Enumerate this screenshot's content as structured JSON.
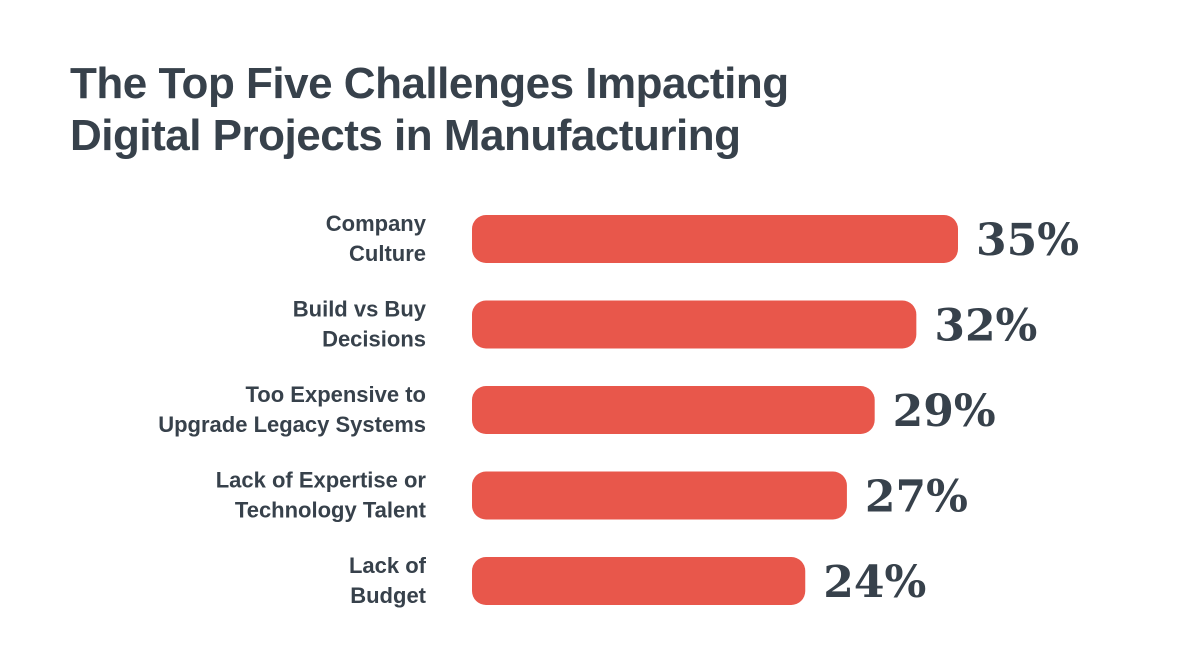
{
  "chart_data": {
    "type": "bar",
    "orientation": "horizontal",
    "title_lines": [
      "The Top Five Challenges Impacting",
      "Digital Projects in Manufacturing"
    ],
    "categories": [
      [
        "Company",
        "Culture"
      ],
      [
        "Build vs Buy",
        "Decisions"
      ],
      [
        "Too Expensive to",
        "Upgrade Legacy Systems"
      ],
      [
        "Lack of Expertise or",
        "Technology Talent"
      ],
      [
        "Lack of",
        "Budget"
      ]
    ],
    "values": [
      35,
      32,
      29,
      27,
      24
    ],
    "value_labels": [
      "35%",
      "32%",
      "29%",
      "27%",
      "24%"
    ],
    "unit": "%",
    "xlabel": "",
    "ylabel": "",
    "grid": false,
    "legend": "none",
    "colors": {
      "bar": "#e8574b",
      "text": "#37414b",
      "background": "#ffffff"
    }
  }
}
